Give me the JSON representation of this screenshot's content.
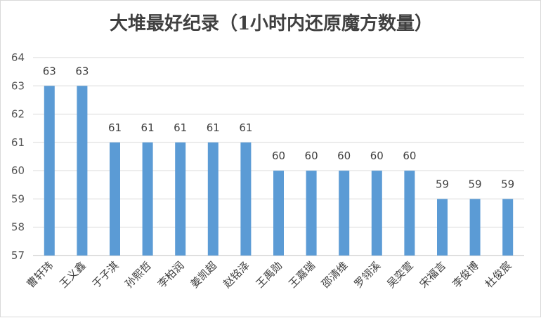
{
  "chart_data": {
    "type": "bar",
    "title": "大堆最好纪录（1小时内还原魔方数量）",
    "categories": [
      "曹轩玮",
      "王义鑫",
      "于子淇",
      "孙熙哲",
      "李柏润",
      "姜凯超",
      "赵铭泽",
      "王禹勋",
      "王嘉瑞",
      "邵清维",
      "罗翎溪",
      "吴奕萱",
      "宋福言",
      "李俊博",
      "杜俊宸"
    ],
    "values": [
      63,
      63,
      61,
      61,
      61,
      61,
      61,
      60,
      60,
      60,
      60,
      60,
      59,
      59,
      59
    ],
    "ylim": [
      57,
      64
    ],
    "yticks": [
      57,
      58,
      59,
      60,
      61,
      62,
      63,
      64
    ],
    "xlabel": "",
    "ylabel": "",
    "grid": true,
    "legend": "none",
    "colors": {
      "bar": "#5b9bd5",
      "grid": "#d9d9d9",
      "axis": "#bfbfbf"
    }
  }
}
